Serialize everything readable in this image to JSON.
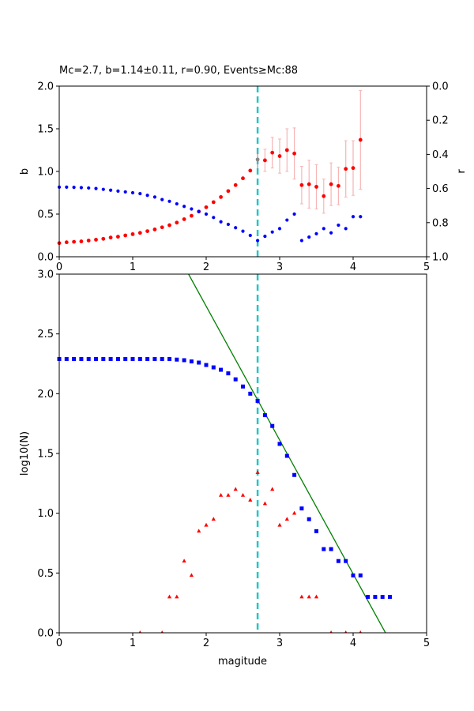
{
  "chart_data": [
    {
      "type": "scatter",
      "title": "Mc=2.7, b=1.14±0.11, r=0.90, Events≥Mc:88",
      "xlabel": "",
      "ylabel": "b",
      "y2label": "r",
      "xlim": [
        0,
        5
      ],
      "ylim": [
        0,
        2.0
      ],
      "y2lim": [
        0.0,
        1.0
      ],
      "y2_inverted": true,
      "x_ticks": [
        "0",
        "1",
        "2",
        "3",
        "4",
        "5"
      ],
      "x_tick_values": [
        0,
        1,
        2,
        3,
        4,
        5
      ],
      "y_ticks": [
        "0.0",
        "0.5",
        "1.0",
        "1.5",
        "2.0"
      ],
      "y_tick_values": [
        0.0,
        0.5,
        1.0,
        1.5,
        2.0
      ],
      "y2_ticks": [
        "0.0",
        "0.2",
        "0.4",
        "0.6",
        "0.8",
        "1.0"
      ],
      "y2_tick_values": [
        0.0,
        0.2,
        0.4,
        0.6,
        0.8,
        1.0
      ],
      "mc_line": 2.7,
      "mc_point": {
        "x": 2.7,
        "y": 1.14,
        "err": 0.11
      },
      "series": [
        {
          "name": "b-value",
          "color": "#ff0000",
          "x": [
            0.0,
            0.1,
            0.2,
            0.3,
            0.4,
            0.5,
            0.6,
            0.7,
            0.8,
            0.9,
            1.0,
            1.1,
            1.2,
            1.3,
            1.4,
            1.5,
            1.6,
            1.7,
            1.8,
            1.9,
            2.0,
            2.1,
            2.2,
            2.3,
            2.4,
            2.5,
            2.6,
            2.8,
            2.9,
            3.0,
            3.1,
            3.2,
            3.3,
            3.4,
            3.5,
            3.6,
            3.7,
            3.8,
            3.9,
            4.0,
            4.1
          ],
          "y": [
            0.16,
            0.17,
            0.175,
            0.18,
            0.19,
            0.2,
            0.21,
            0.225,
            0.235,
            0.25,
            0.265,
            0.28,
            0.3,
            0.32,
            0.345,
            0.37,
            0.4,
            0.44,
            0.48,
            0.53,
            0.58,
            0.64,
            0.7,
            0.77,
            0.84,
            0.92,
            1.01,
            1.13,
            1.22,
            1.18,
            1.25,
            1.21,
            0.84,
            0.85,
            0.82,
            0.71,
            0.85,
            0.83,
            1.03,
            1.04,
            1.37
          ],
          "err": [
            0,
            0,
            0,
            0,
            0,
            0,
            0,
            0,
            0,
            0,
            0,
            0,
            0,
            0,
            0,
            0,
            0,
            0,
            0,
            0,
            0,
            0,
            0,
            0,
            0,
            0,
            0,
            0.13,
            0.18,
            0.2,
            0.25,
            0.3,
            0.22,
            0.28,
            0.26,
            0.2,
            0.25,
            0.22,
            0.33,
            0.32,
            0.58
          ]
        },
        {
          "name": "r-value",
          "color": "#0000ff",
          "axis": "right",
          "x": [
            0.0,
            0.1,
            0.2,
            0.3,
            0.4,
            0.5,
            0.6,
            0.7,
            0.8,
            0.9,
            1.0,
            1.1,
            1.2,
            1.3,
            1.4,
            1.5,
            1.6,
            1.7,
            1.8,
            1.9,
            2.0,
            2.1,
            2.2,
            2.3,
            2.4,
            2.5,
            2.6,
            2.7,
            2.8,
            2.9,
            3.0,
            3.1,
            3.2,
            3.3,
            3.4,
            3.5,
            3.6,
            3.7,
            3.8,
            3.9,
            4.0,
            4.1
          ],
          "y": [
            0.592,
            0.592,
            0.593,
            0.595,
            0.597,
            0.6,
            0.605,
            0.61,
            0.615,
            0.62,
            0.625,
            0.63,
            0.64,
            0.65,
            0.665,
            0.675,
            0.69,
            0.705,
            0.72,
            0.735,
            0.75,
            0.77,
            0.795,
            0.81,
            0.83,
            0.85,
            0.875,
            0.905,
            0.88,
            0.855,
            0.835,
            0.785,
            0.75,
            0.905,
            0.885,
            0.865,
            0.835,
            0.86,
            0.815,
            0.835,
            0.765,
            0.765
          ]
        }
      ]
    },
    {
      "type": "scatter",
      "title": "",
      "xlabel": "magitude",
      "ylabel": "log10(N)",
      "xlim": [
        0,
        5
      ],
      "ylim": [
        0,
        3.0
      ],
      "x_ticks": [
        "0",
        "1",
        "2",
        "3",
        "4",
        "5"
      ],
      "x_tick_values": [
        0,
        1,
        2,
        3,
        4,
        5
      ],
      "y_ticks": [
        "0.0",
        "0.5",
        "1.0",
        "1.5",
        "2.0",
        "2.5",
        "3.0"
      ],
      "y_tick_values": [
        0.0,
        0.5,
        1.0,
        1.5,
        2.0,
        2.5,
        3.0
      ],
      "mc_line": 2.7,
      "fit_line": {
        "color": "#008000",
        "x": [
          1.76,
          4.44
        ],
        "y": [
          3.0,
          0.0
        ]
      },
      "series": [
        {
          "name": "cumulative",
          "color": "#0000ff",
          "marker": "square",
          "x": [
            0.0,
            0.1,
            0.2,
            0.3,
            0.4,
            0.5,
            0.6,
            0.7,
            0.8,
            0.9,
            1.0,
            1.1,
            1.2,
            1.3,
            1.4,
            1.5,
            1.6,
            1.7,
            1.8,
            1.9,
            2.0,
            2.1,
            2.2,
            2.3,
            2.4,
            2.5,
            2.6,
            2.7,
            2.8,
            2.9,
            3.0,
            3.1,
            3.2,
            3.3,
            3.4,
            3.5,
            3.6,
            3.7,
            3.8,
            3.9,
            4.0,
            4.1,
            4.2,
            4.3,
            4.4,
            4.5
          ],
          "y": [
            2.29,
            2.29,
            2.29,
            2.29,
            2.29,
            2.29,
            2.29,
            2.29,
            2.29,
            2.29,
            2.29,
            2.29,
            2.29,
            2.29,
            2.29,
            2.29,
            2.285,
            2.28,
            2.27,
            2.26,
            2.24,
            2.22,
            2.2,
            2.17,
            2.12,
            2.06,
            2.0,
            1.94,
            1.82,
            1.73,
            1.58,
            1.48,
            1.32,
            1.04,
            0.95,
            0.85,
            0.7,
            0.7,
            0.6,
            0.6,
            0.48,
            0.48,
            0.3,
            0.3,
            0.3,
            0.3
          ]
        },
        {
          "name": "non-cumulative",
          "color": "#ff0000",
          "marker": "triangle",
          "x": [
            1.1,
            1.4,
            1.5,
            1.6,
            1.7,
            1.8,
            1.9,
            2.0,
            2.1,
            2.2,
            2.3,
            2.4,
            2.5,
            2.6,
            2.7,
            2.8,
            2.9,
            3.0,
            3.1,
            3.2,
            3.3,
            3.4,
            3.5,
            3.7,
            3.9,
            4.1
          ],
          "y": [
            0.0,
            0.0,
            0.3,
            0.3,
            0.6,
            0.48,
            0.85,
            0.9,
            0.95,
            1.15,
            1.15,
            1.2,
            1.15,
            1.11,
            1.34,
            1.08,
            1.2,
            0.9,
            0.95,
            1.0,
            0.3,
            0.3,
            0.3,
            0.0,
            0.0,
            0.0
          ]
        }
      ]
    }
  ]
}
